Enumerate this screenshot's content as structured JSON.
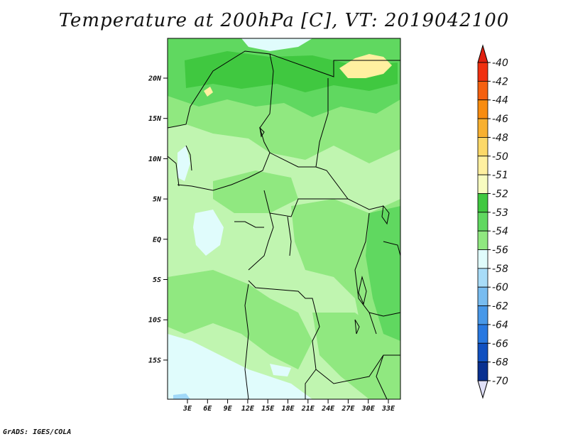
{
  "title": "Temperature at 200hPa [C], VT: 2019042100",
  "credit": "GrADS: IGES/COLA",
  "map": {
    "lat_ticks": [
      "20N",
      "15N",
      "10N",
      "5N",
      "EQ",
      "5S",
      "10S",
      "15S"
    ],
    "lon_ticks": [
      "3E",
      "6E",
      "9E",
      "12E",
      "15E",
      "18E",
      "21E",
      "24E",
      "27E",
      "30E",
      "33E"
    ],
    "colors": {
      "light_green": "#c0f5b0",
      "mid_green": "#90e880",
      "green": "#60d860",
      "dark_green": "#40c840",
      "pale_cyan": "#e0fcfc",
      "pale_yellow": "#fff0a0",
      "light_blue": "#a0d8f8"
    }
  },
  "colorbar": {
    "labels": [
      "-40",
      "-42",
      "-44",
      "-46",
      "-48",
      "-50",
      "-51",
      "-52",
      "-53",
      "-54",
      "-56",
      "-58",
      "-60",
      "-62",
      "-64",
      "-66",
      "-68",
      "-70"
    ],
    "colors": [
      "#f03010",
      "#f46010",
      "#f88c10",
      "#f8b030",
      "#fcd868",
      "#fff0a0",
      "#f8fcc0",
      "#40c840",
      "#60d860",
      "#90e880",
      "#e0fcfc",
      "#a8dcf8",
      "#78bcf0",
      "#4898e8",
      "#2878e0",
      "#1050c0",
      "#083090",
      "#000860"
    ],
    "top_arrow_color": "#e02010",
    "bottom_arrow_color": "#e0e0f8"
  }
}
